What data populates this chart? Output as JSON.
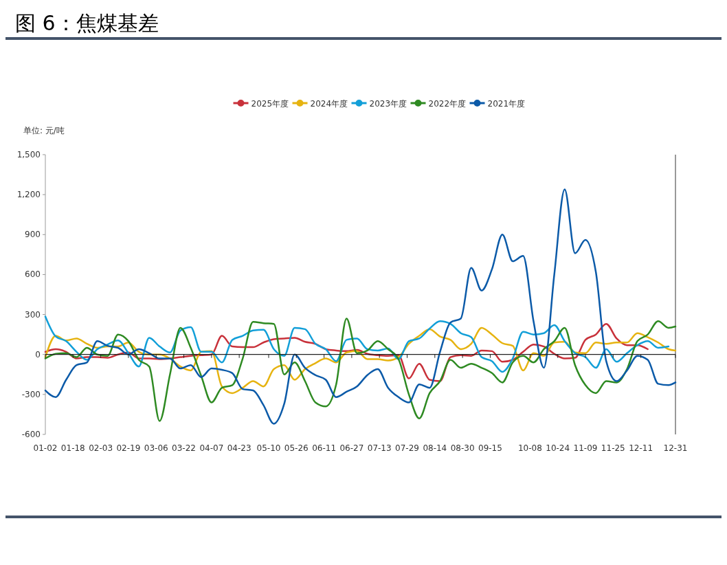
{
  "chart_data": {
    "type": "line",
    "title": "图 6：焦煤基差",
    "ylabel": "单位: 元/吨",
    "x": [
      "--01-02",
      "--01-08",
      "--01-14",
      "--01-20",
      "--01-26",
      "--02-01",
      "--02-07",
      "--02-13",
      "--02-19",
      "--02-25",
      "--03-02",
      "--03-08",
      "--03-14",
      "--03-20",
      "--03-26",
      "--04-01",
      "--04-07",
      "--04-13",
      "--04-19",
      "--04-25",
      "--05-01",
      "--05-07",
      "--05-13",
      "--05-19",
      "--05-25",
      "--05-31",
      "--06-06",
      "--06-12",
      "--06-18",
      "--06-24",
      "--06-30",
      "--07-06",
      "--07-12",
      "--07-18",
      "--07-24",
      "--07-30",
      "--08-05",
      "--08-11",
      "--08-17",
      "--08-23",
      "--08-29",
      "--09-04",
      "--09-10",
      "--09-16",
      "--09-22",
      "--09-28",
      "--10-04",
      "--10-10",
      "--10-16",
      "--10-22",
      "--10-28",
      "--11-03",
      "--11-09",
      "--11-15",
      "--11-21",
      "--11-27",
      "--12-03",
      "--12-09",
      "--12-15",
      "--12-21",
      "--12-27",
      "--12-31"
    ],
    "series": [
      {
        "name": "2025年度",
        "color": "#c8313a",
        "values": [
          20,
          40,
          20,
          -30,
          -20,
          -20,
          -25,
          0,
          15,
          -30,
          -30,
          -35,
          -30,
          -20,
          -10,
          -5,
          0,
          140,
          60,
          55,
          55,
          90,
          115,
          120,
          125,
          95,
          80,
          40,
          30,
          25,
          35,
          5,
          -5,
          -10,
          -5,
          -180,
          -70,
          -190,
          -200,
          -20,
          -5,
          -10,
          30,
          25,
          -55,
          -40,
          20,
          75,
          60,
          5,
          -30,
          -25,
          110,
          150,
          230,
          120,
          70,
          70,
          40,
          null,
          null,
          null
        ]
      },
      {
        "name": "2024年度",
        "color": "#e6b310",
        "values": [
          -20,
          140,
          105,
          120,
          80,
          50,
          60,
          60,
          90,
          20,
          0,
          0,
          -30,
          -90,
          -120,
          20,
          25,
          -240,
          -290,
          -250,
          -200,
          -240,
          -110,
          -80,
          -190,
          -110,
          -65,
          -30,
          -60,
          15,
          25,
          -35,
          -35,
          -45,
          -20,
          80,
          140,
          190,
          135,
          110,
          40,
          80,
          200,
          150,
          85,
          65,
          -120,
          10,
          -10,
          90,
          95,
          15,
          10,
          90,
          80,
          90,
          90,
          160,
          130,
          90,
          40,
          30
        ]
      },
      {
        "name": "2023年度",
        "color": "#129fd8",
        "values": [
          285,
          135,
          100,
          20,
          -40,
          40,
          75,
          105,
          10,
          -90,
          125,
          60,
          15,
          180,
          205,
          20,
          20,
          -60,
          110,
          140,
          180,
          185,
          40,
          -10,
          200,
          190,
          80,
          40,
          -50,
          110,
          120,
          40,
          30,
          45,
          -35,
          100,
          120,
          195,
          250,
          230,
          160,
          130,
          -20,
          -50,
          -130,
          -30,
          170,
          150,
          160,
          220,
          100,
          10,
          -20,
          -100,
          40,
          -55,
          10,
          70,
          100,
          50,
          60,
          null
        ]
      },
      {
        "name": "2022年度",
        "color": "#2e8a22",
        "values": [
          -30,
          5,
          10,
          -20,
          50,
          0,
          -10,
          150,
          100,
          -40,
          -90,
          -500,
          -150,
          200,
          50,
          -160,
          -360,
          -250,
          -230,
          -30,
          245,
          235,
          230,
          -150,
          -60,
          -200,
          -360,
          -390,
          -225,
          270,
          10,
          30,
          100,
          40,
          -35,
          -300,
          -480,
          -290,
          -200,
          -40,
          -100,
          -70,
          -100,
          -140,
          -210,
          -60,
          -10,
          -60,
          40,
          100,
          200,
          -80,
          -230,
          -290,
          -200,
          -210,
          -110,
          100,
          150,
          250,
          200,
          210
        ]
      },
      {
        "name": "2021年度",
        "color": "#0b5aa8",
        "values": [
          -270,
          -320,
          -190,
          -80,
          -60,
          100,
          65,
          50,
          0,
          40,
          10,
          -30,
          -30,
          -105,
          -80,
          -170,
          -105,
          -115,
          -140,
          -260,
          -270,
          -380,
          -520,
          -370,
          0,
          -100,
          -155,
          -190,
          -320,
          -280,
          -240,
          -155,
          -110,
          -250,
          -320,
          -360,
          -225,
          -250,
          20,
          240,
          270,
          650,
          480,
          640,
          900,
          700,
          740,
          250,
          -100,
          600,
          1240,
          760,
          860,
          620,
          -50,
          -200,
          -120,
          -10,
          -40,
          -220,
          -230,
          -210
        ]
      }
    ],
    "ylim": [
      -600,
      1500
    ],
    "yticks": [
      {
        "value": -600,
        "label": "-600"
      },
      {
        "value": -300,
        "label": "-300"
      },
      0,
      300,
      600,
      900,
      {
        "value": 1200,
        "label": "1,200"
      },
      {
        "value": 1500,
        "label": "1,500"
      }
    ],
    "xlim": [
      "--01-02",
      "--12-31"
    ],
    "xticks": [
      {
        "value": "--01-02",
        "label": "01-02"
      },
      {
        "value": "--01-18",
        "label": "01-18"
      },
      {
        "value": "--02-03",
        "label": "02-03"
      },
      {
        "value": "--02-19",
        "label": "02-19"
      },
      {
        "value": "--03-06",
        "label": "03-06"
      },
      {
        "value": "--03-22",
        "label": "03-22"
      },
      {
        "value": "--04-07",
        "label": "04-07"
      },
      {
        "value": "--04-23",
        "label": "04-23"
      },
      {
        "value": "--05-10",
        "label": "05-10"
      },
      {
        "value": "--05-26",
        "label": "05-26"
      },
      {
        "value": "--06-11",
        "label": "06-11"
      },
      {
        "value": "--06-27",
        "label": "06-27"
      },
      {
        "value": "--07-13",
        "label": "07-13"
      },
      {
        "value": "--07-29",
        "label": "07-29"
      },
      {
        "value": "--08-14",
        "label": "08-14"
      },
      {
        "value": "--08-30",
        "label": "08-30"
      },
      {
        "value": "--09-15",
        "label": "09-15"
      },
      {
        "value": "--10-08",
        "label": "10-08"
      },
      {
        "value": "--10-24",
        "label": "10-24"
      },
      {
        "value": "--11-09",
        "label": "11-09"
      },
      {
        "value": "--11-25",
        "label": "11-25"
      },
      {
        "value": "--12-11",
        "label": "12-11"
      },
      {
        "value": "--12-31",
        "label": "12-31"
      }
    ],
    "legend": "top",
    "marker": "none",
    "line_style": "solid"
  }
}
